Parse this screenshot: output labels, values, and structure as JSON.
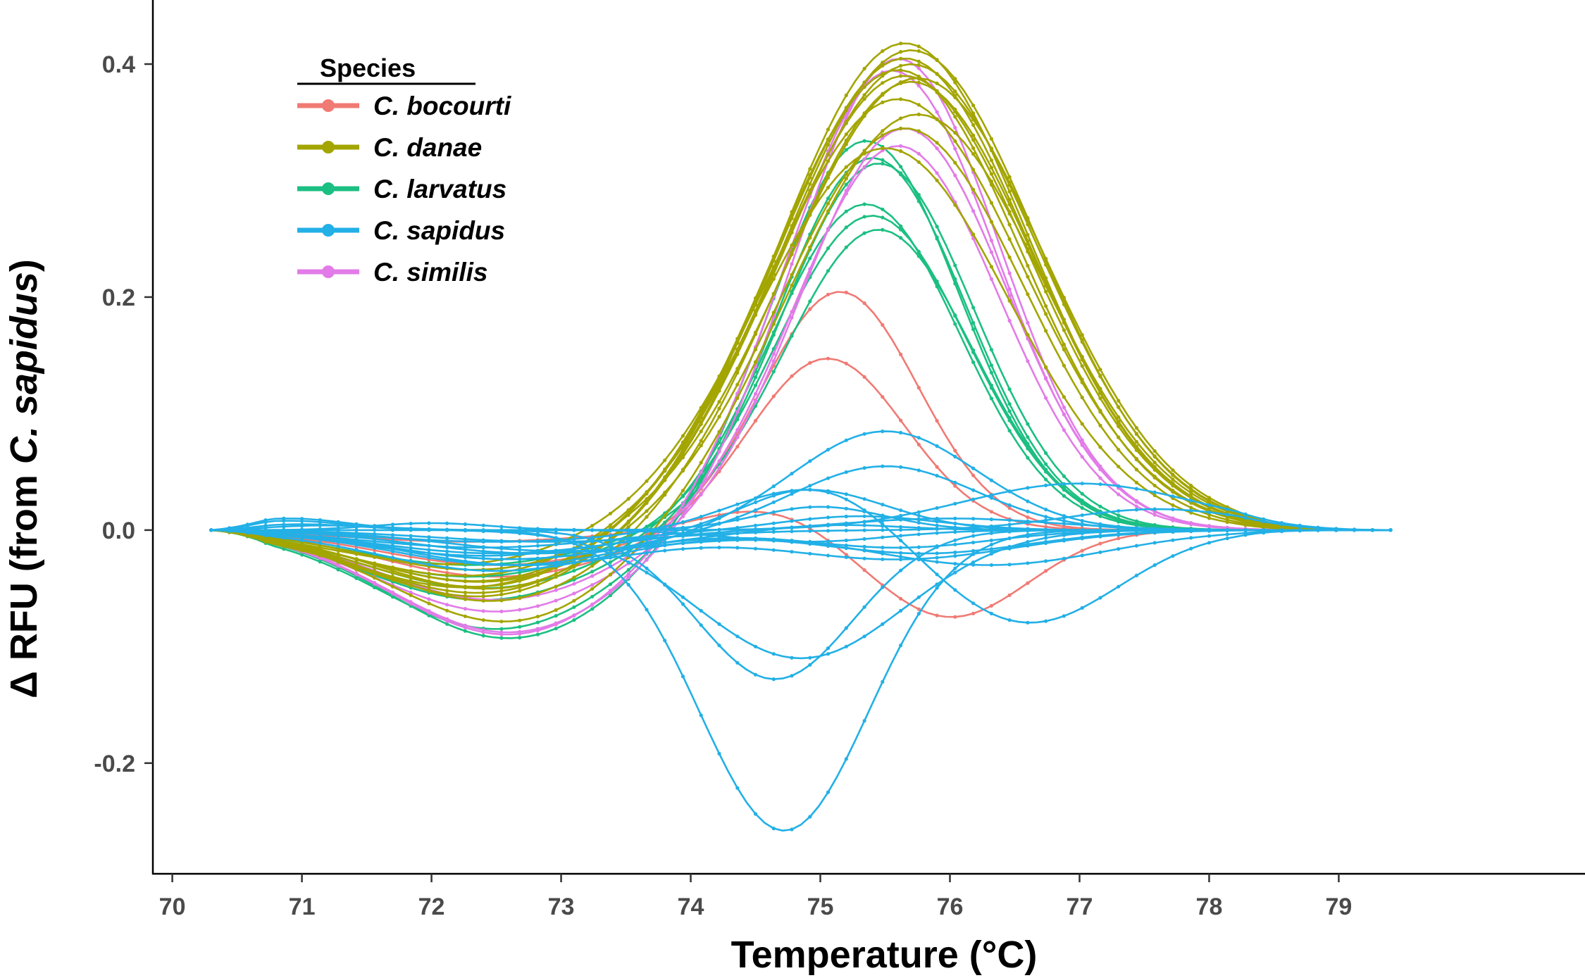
{
  "chart_data": {
    "type": "line",
    "title": "",
    "xlabel": "Temperature (°C)",
    "ylabel_prefix": "Δ RFU (from ",
    "ylabel_species": "C. sapidus",
    "ylabel_suffix": ")",
    "xlim": [
      69.85,
      80.9
    ],
    "ylim": [
      -0.295,
      0.455
    ],
    "x_ticks": [
      70,
      71,
      72,
      73,
      74,
      75,
      76,
      77,
      78,
      79
    ],
    "x_tick_labels": [
      "70",
      "71",
      "72",
      "73",
      "74",
      "75",
      "76",
      "77",
      "78",
      "79"
    ],
    "y_ticks": [
      -0.2,
      0.0,
      0.2,
      0.4
    ],
    "y_tick_labels": [
      "-0.2",
      "0.0",
      "0.2",
      "0.4"
    ],
    "x_start": 70.3,
    "x_end": 79.4,
    "legend": {
      "title": "Species",
      "position": "top-left",
      "entries": [
        {
          "label": "C. bocourti",
          "color": "#F07A74"
        },
        {
          "label": "C. danae",
          "color": "#A3A500"
        },
        {
          "label": "C. larvatus",
          "color": "#1CBF82"
        },
        {
          "label": "C. sapidus",
          "color": "#22B0E6"
        },
        {
          "label": "C. similis",
          "color": "#E27BE8"
        }
      ]
    },
    "species_colors": {
      "C. bocourti": "#F07A74",
      "C. danae": "#A3A500",
      "C. larvatus": "#1CBF82",
      "C. sapidus": "#22B0E6",
      "C. similis": "#E27BE8"
    },
    "series": [
      {
        "species": "C. danae",
        "dip": -0.058,
        "dipCenter": 72.4,
        "peak": 0.418,
        "peakCenter": 75.65,
        "peakWidth": 0.95
      },
      {
        "species": "C. danae",
        "dip": -0.055,
        "dipCenter": 72.4,
        "peak": 0.412,
        "peakCenter": 75.7,
        "peakWidth": 0.97
      },
      {
        "species": "C. danae",
        "dip": -0.05,
        "dipCenter": 72.3,
        "peak": 0.405,
        "peakCenter": 75.65,
        "peakWidth": 0.96
      },
      {
        "species": "C. danae",
        "dip": -0.052,
        "dipCenter": 72.5,
        "peak": 0.4,
        "peakCenter": 75.7,
        "peakWidth": 0.98
      },
      {
        "species": "C. danae",
        "dip": -0.045,
        "dipCenter": 72.4,
        "peak": 0.395,
        "peakCenter": 75.6,
        "peakWidth": 0.95
      },
      {
        "species": "C. danae",
        "dip": -0.04,
        "dipCenter": 72.3,
        "peak": 0.39,
        "peakCenter": 75.65,
        "peakWidth": 0.96
      },
      {
        "species": "C. danae",
        "dip": -0.035,
        "dipCenter": 72.4,
        "peak": 0.388,
        "peakCenter": 75.75,
        "peakWidth": 0.98
      },
      {
        "species": "C. danae",
        "dip": -0.062,
        "dipCenter": 72.5,
        "peak": 0.385,
        "peakCenter": 75.7,
        "peakWidth": 0.95
      },
      {
        "species": "C. danae",
        "dip": -0.03,
        "dipCenter": 72.2,
        "peak": 0.37,
        "peakCenter": 75.6,
        "peakWidth": 0.97
      },
      {
        "species": "C. danae",
        "dip": -0.08,
        "dipCenter": 72.6,
        "peak": 0.357,
        "peakCenter": 75.75,
        "peakWidth": 0.96
      },
      {
        "species": "C. danae",
        "dip": -0.045,
        "dipCenter": 72.4,
        "peak": 0.345,
        "peakCenter": 75.65,
        "peakWidth": 0.92
      },
      {
        "species": "C. danae",
        "dip": -0.05,
        "dipCenter": 72.4,
        "peak": 0.328,
        "peakCenter": 75.5,
        "peakWidth": 0.95
      },
      {
        "species": "C. similis",
        "dip": -0.088,
        "dipCenter": 72.6,
        "peak": 0.405,
        "peakCenter": 75.6,
        "peakWidth": 0.78
      },
      {
        "species": "C. similis",
        "dip": -0.09,
        "dipCenter": 72.6,
        "peak": 0.395,
        "peakCenter": 75.55,
        "peakWidth": 0.8
      },
      {
        "species": "C. similis",
        "dip": -0.07,
        "dipCenter": 72.5,
        "peak": 0.345,
        "peakCenter": 75.65,
        "peakWidth": 0.78
      },
      {
        "species": "C. similis",
        "dip": -0.06,
        "dipCenter": 72.5,
        "peak": 0.33,
        "peakCenter": 75.6,
        "peakWidth": 0.78
      },
      {
        "species": "C. larvatus",
        "dip": -0.093,
        "dipCenter": 72.6,
        "peak": 0.335,
        "peakCenter": 75.35,
        "peakWidth": 0.72
      },
      {
        "species": "C. larvatus",
        "dip": -0.085,
        "dipCenter": 72.5,
        "peak": 0.32,
        "peakCenter": 75.4,
        "peakWidth": 0.72
      },
      {
        "species": "C. larvatus",
        "dip": -0.06,
        "dipCenter": 72.4,
        "peak": 0.315,
        "peakCenter": 75.45,
        "peakWidth": 0.73
      },
      {
        "species": "C. larvatus",
        "dip": -0.05,
        "dipCenter": 72.4,
        "peak": 0.28,
        "peakCenter": 75.35,
        "peakWidth": 0.72
      },
      {
        "species": "C. larvatus",
        "dip": -0.04,
        "dipCenter": 72.3,
        "peak": 0.27,
        "peakCenter": 75.4,
        "peakWidth": 0.73
      },
      {
        "species": "C. larvatus",
        "dip": -0.03,
        "dipCenter": 72.3,
        "peak": 0.258,
        "peakCenter": 75.45,
        "peakWidth": 0.72
      },
      {
        "species": "C. bocourti",
        "dip": -0.03,
        "dipCenter": 72.5,
        "peak": 0.205,
        "peakCenter": 75.15,
        "peakWidth": 0.6
      },
      {
        "species": "C. bocourti",
        "dip": -0.04,
        "dipCenter": 72.5,
        "peak": 0.148,
        "peakCenter": 75.05,
        "peakWidth": 0.6
      },
      {
        "species": "C. bocourti",
        "dip": -0.01,
        "dipCenter": 72.3,
        "peak": 0.02,
        "peakCenter": 74.6,
        "peakWidth": 0.5,
        "tail": -0.075,
        "tailCenter": 76.0,
        "tailWidth": 0.6
      },
      {
        "species": "C. sapidus",
        "bump": 0.01,
        "bumpCenter": 70.9,
        "peak": -0.258,
        "peakCenter": 74.72,
        "peakWidth": 0.65
      },
      {
        "species": "C. sapidus",
        "bump": 0.008,
        "bumpCenter": 70.9,
        "peak": -0.128,
        "peakCenter": 74.65,
        "peakWidth": 0.6
      },
      {
        "species": "C. sapidus",
        "bump": 0.005,
        "bumpCenter": 71.0,
        "peak": -0.11,
        "peakCenter": 74.85,
        "peakWidth": 0.8
      },
      {
        "species": "C. sapidus",
        "dip": -0.03,
        "dipCenter": 72.6,
        "peak": 0.085,
        "peakCenter": 75.5,
        "peakWidth": 0.7
      },
      {
        "species": "C. sapidus",
        "dip": -0.025,
        "dipCenter": 72.6,
        "peak": 0.055,
        "peakCenter": 75.5,
        "peakWidth": 0.7
      },
      {
        "species": "C. sapidus",
        "peak": 0.04,
        "peakCenter": 77.0,
        "peakWidth": 0.9
      },
      {
        "species": "C. sapidus",
        "dip": -0.01,
        "dipCenter": 72.5,
        "peak": 0.035,
        "peakCenter": 74.9,
        "peakWidth": 0.6
      },
      {
        "species": "C. sapidus",
        "dip": -0.02,
        "dipCenter": 72.5,
        "peak": 0.04,
        "peakCenter": 75.0,
        "peakWidth": 0.55,
        "tail": -0.08,
        "tailCenter": 76.6,
        "tailWidth": 0.7
      },
      {
        "species": "C. sapidus",
        "bump": 0.006,
        "bumpCenter": 72.0,
        "peak": 0.02,
        "peakCenter": 75.0,
        "peakWidth": 0.5
      },
      {
        "species": "C. sapidus",
        "dip": -0.015,
        "dipCenter": 72.4,
        "peak": 0.012,
        "peakCenter": 75.3,
        "peakWidth": 0.6
      },
      {
        "species": "C. sapidus",
        "dip": -0.02,
        "dipCenter": 72.8,
        "peak": 0.005,
        "peakCenter": 75.1,
        "peakWidth": 0.5
      },
      {
        "species": "C. sapidus",
        "dip": -0.025,
        "dipCenter": 72.6,
        "peak": -0.015,
        "peakCenter": 75.6,
        "peakWidth": 0.7
      },
      {
        "species": "C. sapidus",
        "dip": -0.035,
        "dipCenter": 72.5,
        "peak": -0.02,
        "peakCenter": 75.8,
        "peakWidth": 0.8
      },
      {
        "species": "C. sapidus",
        "dip": -0.03,
        "dipCenter": 72.7,
        "peak": -0.025,
        "peakCenter": 75.6,
        "peakWidth": 0.9
      },
      {
        "species": "C. sapidus",
        "dip": -0.022,
        "dipCenter": 72.4,
        "peak": 0.01,
        "peakCenter": 76.0,
        "peakWidth": 0.8
      },
      {
        "species": "C. sapidus",
        "bump": 0.004,
        "bumpCenter": 71.2,
        "peak": -0.01,
        "peakCenter": 74.9,
        "peakWidth": 0.6
      },
      {
        "species": "C. sapidus",
        "dip": -0.01,
        "dipCenter": 72.9,
        "peak": 0.018,
        "peakCenter": 77.6,
        "peakWidth": 0.7
      },
      {
        "species": "C. sapidus",
        "dip": -0.018,
        "dipCenter": 73.0,
        "peak": -0.03,
        "peakCenter": 76.3,
        "peakWidth": 0.9
      }
    ]
  }
}
